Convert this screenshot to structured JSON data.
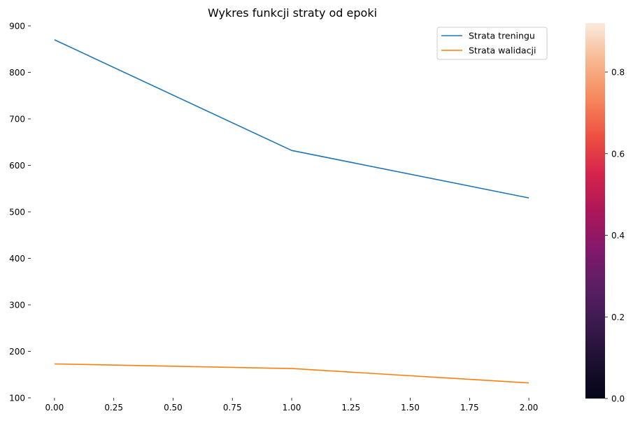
{
  "chart_data": {
    "type": "line",
    "title": "Wykres funkcji straty od epoki",
    "xlabel": "",
    "ylabel": "",
    "x": [
      0,
      1,
      2
    ],
    "series": [
      {
        "name": "Strata treningu",
        "values": [
          870,
          632,
          530
        ],
        "color": "#1f77b4"
      },
      {
        "name": "Strata walidacji",
        "values": [
          173,
          163,
          132
        ],
        "color": "#ff7f0e"
      }
    ],
    "xlim": [
      -0.1,
      2.1
    ],
    "ylim": [
      100,
      900
    ],
    "x_ticks": [
      "0.00",
      "0.25",
      "0.50",
      "0.75",
      "1.00",
      "1.25",
      "1.50",
      "1.75",
      "2.00"
    ],
    "y_ticks": [
      "100",
      "200",
      "300",
      "400",
      "500",
      "600",
      "700",
      "800",
      "900"
    ],
    "grid": false,
    "legend_position": "top-right",
    "colorbar": {
      "colormap": "rocket",
      "range": [
        0,
        0.92
      ],
      "ticks": [
        "0.0",
        "0.2",
        "0.4",
        "0.6",
        "0.8"
      ]
    }
  }
}
